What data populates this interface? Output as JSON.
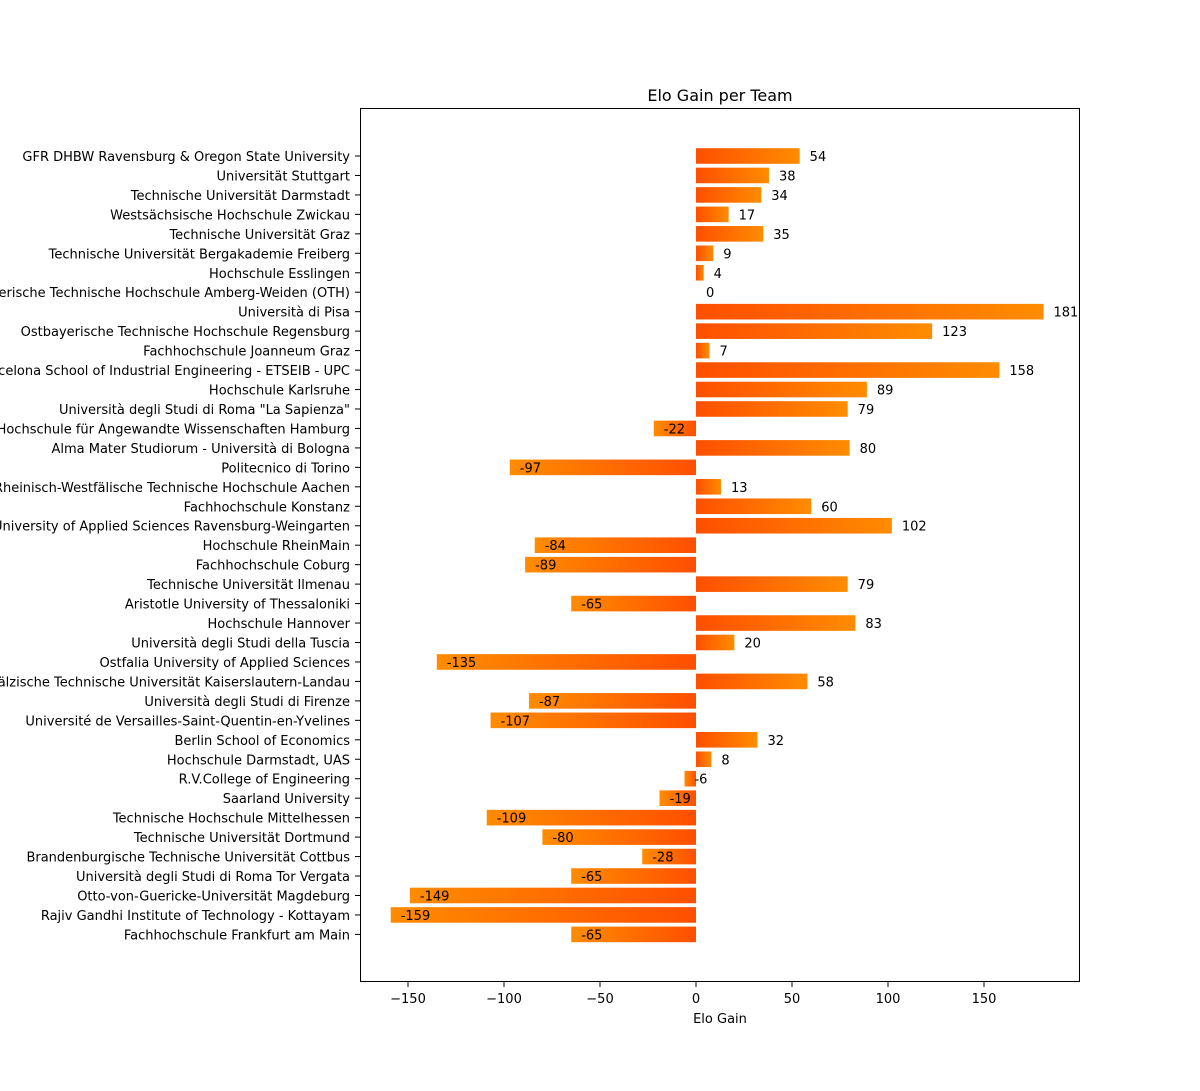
{
  "chart_data": {
    "type": "bar",
    "orientation": "horizontal",
    "title": "Elo Gain per Team",
    "xlabel": "Elo Gain",
    "ylabel": "",
    "xlim": [
      -175,
      200
    ],
    "xticks": [
      -150,
      -100,
      -50,
      0,
      50,
      100,
      150
    ],
    "xtick_labels": [
      "−150",
      "−100",
      "−50",
      "0",
      "50",
      "100",
      "150"
    ],
    "grid": false,
    "legend": "none",
    "colors": {
      "bar_start": "#ff4f00",
      "bar_end": "#ff8c00"
    },
    "categories": [
      "GFR DHBW Ravensburg & Oregon State University",
      "Universität Stuttgart",
      "Technische Universität Darmstadt",
      "Westsächsische Hochschule Zwickau",
      "Technische Universität Graz",
      "Technische Universität Bergakademie Freiberg",
      "Hochschule Esslingen",
      "Ostbayerische Technische Hochschule Amberg-Weiden (OTH)",
      "Università di Pisa",
      "Ostbayerische Technische Hochschule Regensburg",
      "Fachhochschule Joanneum Graz",
      "Barcelona School of Industrial Engineering - ETSEIB - UPC",
      "Hochschule Karlsruhe",
      "Università degli Studi di Roma \"La Sapienza\"",
      "Hochschule für Angewandte Wissenschaften Hamburg",
      "Alma Mater Studiorum - Università di Bologna",
      "Politecnico di Torino",
      "Rheinisch-Westfälische Technische Hochschule Aachen",
      "Fachhochschule Konstanz",
      "University of Applied Sciences Ravensburg-Weingarten",
      "Hochschule RheinMain",
      "Fachhochschule Coburg",
      "Technische Universität Ilmenau",
      "Aristotle University of Thessaloniki",
      "Hochschule Hannover",
      "Università degli Studi della Tuscia",
      "Ostfalia University of Applied Sciences",
      "Rheinland-Pfälzische Technische Universität Kaiserslautern-Landau",
      "Università degli Studi di Firenze",
      "Université de Versailles-Saint-Quentin-en-Yvelines",
      "Berlin School of Economics",
      "Hochschule Darmstadt, UAS",
      "R.V.College of Engineering",
      "Saarland University",
      "Technische Hochschule Mittelhessen",
      "Technische Universität Dortmund",
      "Brandenburgische Technische Universität Cottbus",
      "Università degli Studi di Roma Tor Vergata",
      "Otto-von-Guericke-Universität Magdeburg",
      "Rajiv Gandhi Institute of Technology - Kottayam",
      "Fachhochschule Frankfurt am Main"
    ],
    "values": [
      54,
      38,
      34,
      17,
      35,
      9,
      4,
      0,
      181,
      123,
      7,
      158,
      89,
      79,
      -22,
      80,
      -97,
      13,
      60,
      102,
      -84,
      -89,
      79,
      -65,
      83,
      20,
      -135,
      58,
      -87,
      -107,
      32,
      8,
      -6,
      -19,
      -109,
      -80,
      -28,
      -65,
      -149,
      -159,
      -65
    ],
    "value_labels": [
      "54",
      "38",
      "34",
      "17",
      "35",
      "9",
      "4",
      "0",
      "181",
      "123",
      "7",
      "158",
      "89",
      "79",
      "-22",
      "80",
      "-97",
      "13",
      "60",
      "102",
      "-84",
      "-89",
      "79",
      "-65",
      "83",
      "20",
      "-135",
      "58",
      "-87",
      "-107",
      "32",
      "8",
      "-6",
      "-19",
      "-109",
      "-80",
      "-28",
      "-65",
      "-149",
      "-159",
      "-65"
    ]
  }
}
